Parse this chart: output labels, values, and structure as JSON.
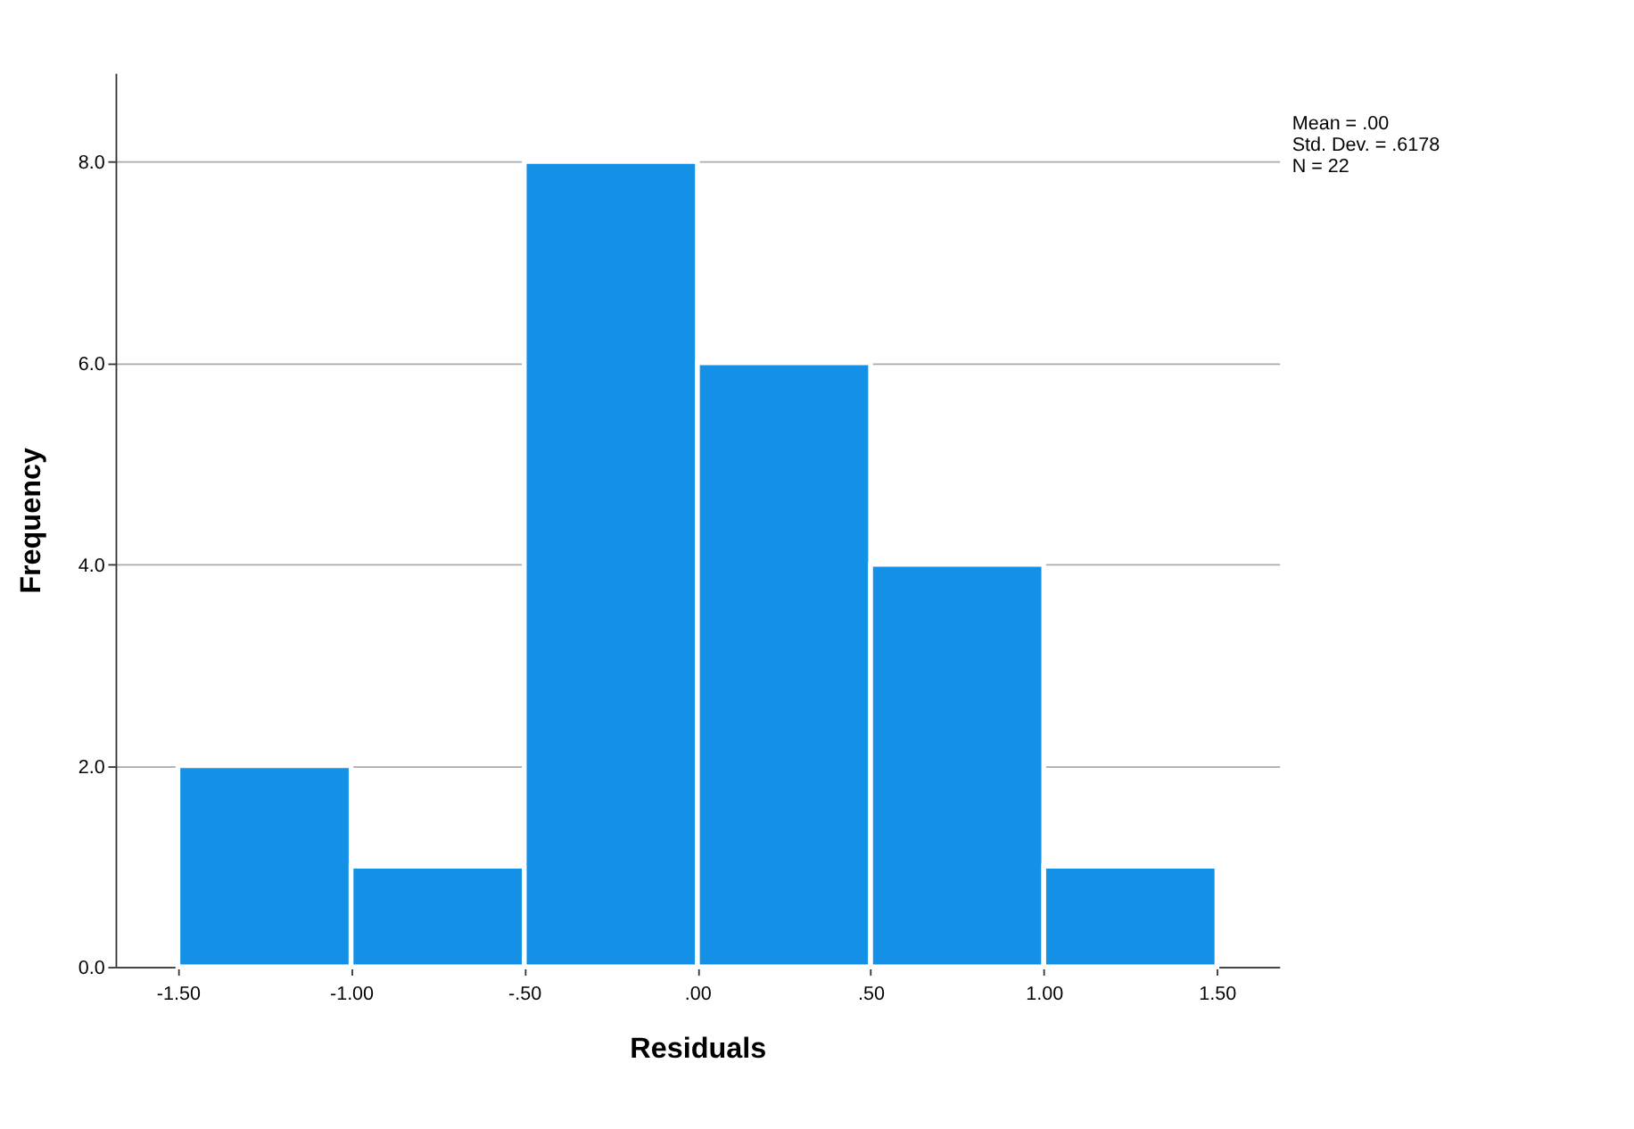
{
  "chart_data": {
    "type": "histogram",
    "xlabel": "Residuals",
    "ylabel": "Frequency",
    "bins": [
      -1.5,
      -1.0,
      -0.5,
      0.0,
      0.5,
      1.0,
      1.5
    ],
    "values": [
      2,
      1,
      8,
      6,
      4,
      1
    ],
    "color": "#1490e6",
    "xlim": [
      -1.68,
      1.68
    ],
    "xticks": [
      {
        "value": -1.5,
        "label": "-1.50"
      },
      {
        "value": -1.0,
        "label": "-1.00"
      },
      {
        "value": -0.5,
        "label": "-.50"
      },
      {
        "value": 0.0,
        "label": ".00"
      },
      {
        "value": 0.5,
        "label": ".50"
      },
      {
        "value": 1.0,
        "label": "1.00"
      },
      {
        "value": 1.5,
        "label": "1.50"
      }
    ],
    "ylim": [
      0,
      8.88
    ],
    "yticks": [
      {
        "value": 0,
        "label": "0.0"
      },
      {
        "value": 2,
        "label": "2.0"
      },
      {
        "value": 4,
        "label": "4.0"
      },
      {
        "value": 6,
        "label": "6.0"
      },
      {
        "value": 8,
        "label": "8.0"
      }
    ],
    "grid": "y",
    "annotations": [
      "Mean = .00",
      "Std. Dev. = .6178",
      "N = 22"
    ]
  }
}
